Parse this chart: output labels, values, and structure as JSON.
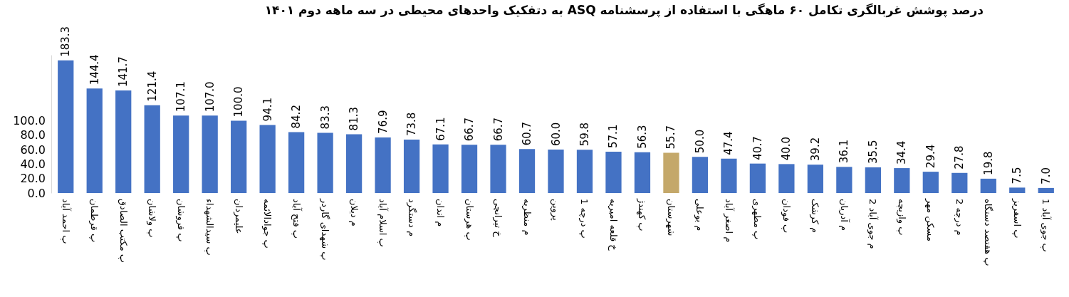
{
  "chart_data": {
    "type": "bar",
    "title": "درصد پوشش غربالگری تکامل ۶۰ ماهگی با استفاده از پرسشنامه ASQ به دتفکیک واحدهای محیطی در سه ماهه دوم ۱۴۰۱",
    "categories": [
      "پ احمد آباد",
      "پ قرطمان",
      "پ مکتب الصادق",
      "پ ولاشان",
      "پ فروشان",
      "پ سیدالشهداء",
      "علیمردان",
      "پ جوادالائمه",
      "پ فتح آباد",
      "پ شهدای گاردر",
      "م دیلان",
      "پ اسلام آباد",
      "م دستگرد",
      "م اندان",
      "پ هرستان",
      "خ تیرانچی",
      "م منظریه",
      "پروین",
      "پ درچه 1",
      "خ قلعه امیریه",
      "پ کهندژ",
      "شهرستان",
      "م بوعلی",
      "م اصغر آباد",
      "پ مطهری",
      "پ فودان",
      "م کرشک",
      "م آدریان",
      "م جوی آباد 2",
      "پ وازیچه",
      "مسکن مهر",
      "م درچه 2",
      "پ هفتصد دستگاه",
      "پ اسفریز",
      "پ جوی آباد 1"
    ],
    "values": [
      183.3,
      144.4,
      141.7,
      121.4,
      107.1,
      107.0,
      100.0,
      94.1,
      84.2,
      83.3,
      81.3,
      76.9,
      73.8,
      67.1,
      66.7,
      66.7,
      60.7,
      60.0,
      59.8,
      57.1,
      56.3,
      55.7,
      50.0,
      47.4,
      40.7,
      40.0,
      39.2,
      36.1,
      35.5,
      34.4,
      29.4,
      27.8,
      19.8,
      7.5,
      7.0
    ],
    "value_labels": [
      "183.3",
      "144.4",
      "141.7",
      "121.4",
      "107.1",
      "107.0",
      "100.0",
      "94.1",
      "84.2",
      "83.3",
      "81.3",
      "76.9",
      "73.8",
      "67.1",
      "66.7",
      "66.7",
      "60.7",
      "60.0",
      "59.8",
      "57.1",
      "56.3",
      "55.7",
      "50.0",
      "47.4",
      "40.7",
      "40.0",
      "39.2",
      "36.1",
      "35.5",
      "34.4",
      "29.4",
      "27.8",
      "19.8",
      "7.5",
      "7.0"
    ],
    "colors": [
      "#4472c4",
      "#4472c4",
      "#4472c4",
      "#4472c4",
      "#4472c4",
      "#4472c4",
      "#4472c4",
      "#4472c4",
      "#4472c4",
      "#4472c4",
      "#4472c4",
      "#4472c4",
      "#4472c4",
      "#4472c4",
      "#4472c4",
      "#4472c4",
      "#4472c4",
      "#4472c4",
      "#4472c4",
      "#4472c4",
      "#4472c4",
      "#c4a86a",
      "#4472c4",
      "#4472c4",
      "#4472c4",
      "#4472c4",
      "#4472c4",
      "#4472c4",
      "#4472c4",
      "#4472c4",
      "#4472c4",
      "#4472c4",
      "#4472c4",
      "#4472c4",
      "#4472c4"
    ],
    "ylim": [
      0,
      190
    ],
    "yticks": [
      {
        "value": 0,
        "label": "0.0"
      },
      {
        "value": 20,
        "label": "20.0"
      },
      {
        "value": 40,
        "label": "40.0"
      },
      {
        "value": 60,
        "label": "60.0"
      },
      {
        "value": 80,
        "label": "80.0"
      },
      {
        "value": 100,
        "label": "100.0"
      }
    ],
    "grid": false
  }
}
